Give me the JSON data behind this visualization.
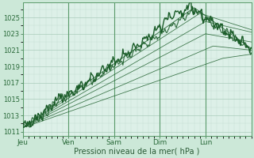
{
  "background_color": "#cce8d8",
  "plot_bg_color": "#ddf0e8",
  "grid_color": "#aaccbb",
  "grid_minor_color": "#c4ddd0",
  "line_color": "#1a5c28",
  "xlabel": "Pression niveau de la mer( hPa )",
  "xtick_labels": [
    "Jeu",
    "Ven",
    "Sam",
    "Dim",
    "Lun"
  ],
  "xtick_positions": [
    0,
    24,
    48,
    72,
    96
  ],
  "ylim": [
    1010.5,
    1026.8
  ],
  "yticks": [
    1011,
    1013,
    1015,
    1017,
    1019,
    1021,
    1023,
    1025
  ],
  "total_hours": 120,
  "num_points": 300
}
